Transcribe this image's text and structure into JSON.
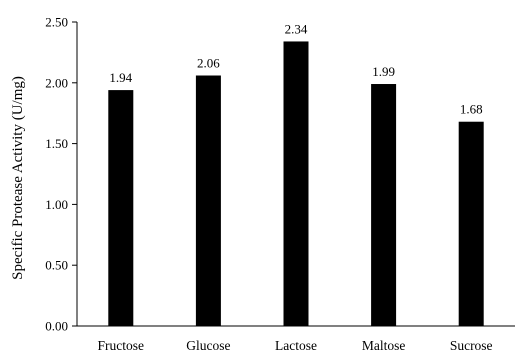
{
  "chart_data": {
    "type": "bar",
    "title": "",
    "xlabel": "",
    "ylabel": "Specific Protease Activity (U/mg)",
    "categories": [
      "Fructose",
      "Glucose",
      "Lactose",
      "Maltose",
      "Sucrose"
    ],
    "values": [
      1.94,
      2.06,
      2.34,
      1.99,
      1.68
    ],
    "data_labels": [
      "1.94",
      "2.06",
      "2.34",
      "1.99",
      "1.68"
    ],
    "ylim": [
      0,
      2.5
    ],
    "yticks": [
      0,
      0.5,
      1.0,
      1.5,
      2.0,
      2.5
    ],
    "ytick_labels": [
      "0.00",
      "0.50",
      "1.00",
      "1.50",
      "2.00",
      "2.50"
    ],
    "grid": false,
    "legend": "none",
    "bar_color": "#000000"
  }
}
